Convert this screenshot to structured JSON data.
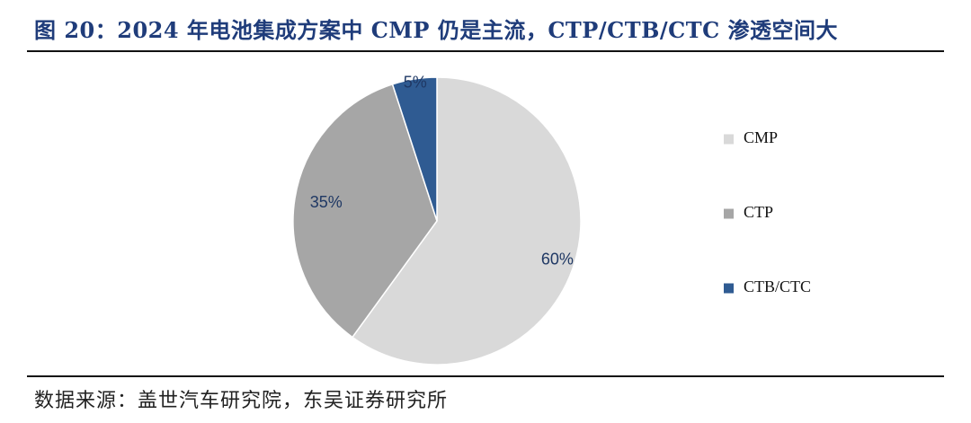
{
  "figure": {
    "title": "图 20：2024 年电池集成方案中 CMP 仍是主流，CTP/CTB/CTC 渗透空间大",
    "source": "数据来源：盖世汽车研究院，东吴证券研究所"
  },
  "chart_data": {
    "type": "pie",
    "title": "",
    "labels": [
      "CMP",
      "CTP",
      "CTB/CTC"
    ],
    "values": [
      60,
      35,
      5
    ],
    "value_labels": [
      "60%",
      "35%",
      "5%"
    ],
    "colors": [
      "#d9d9d9",
      "#a6a6a6",
      "#2f5b92"
    ],
    "start": "12 o'clock",
    "direction": "clockwise",
    "legend": "right"
  }
}
